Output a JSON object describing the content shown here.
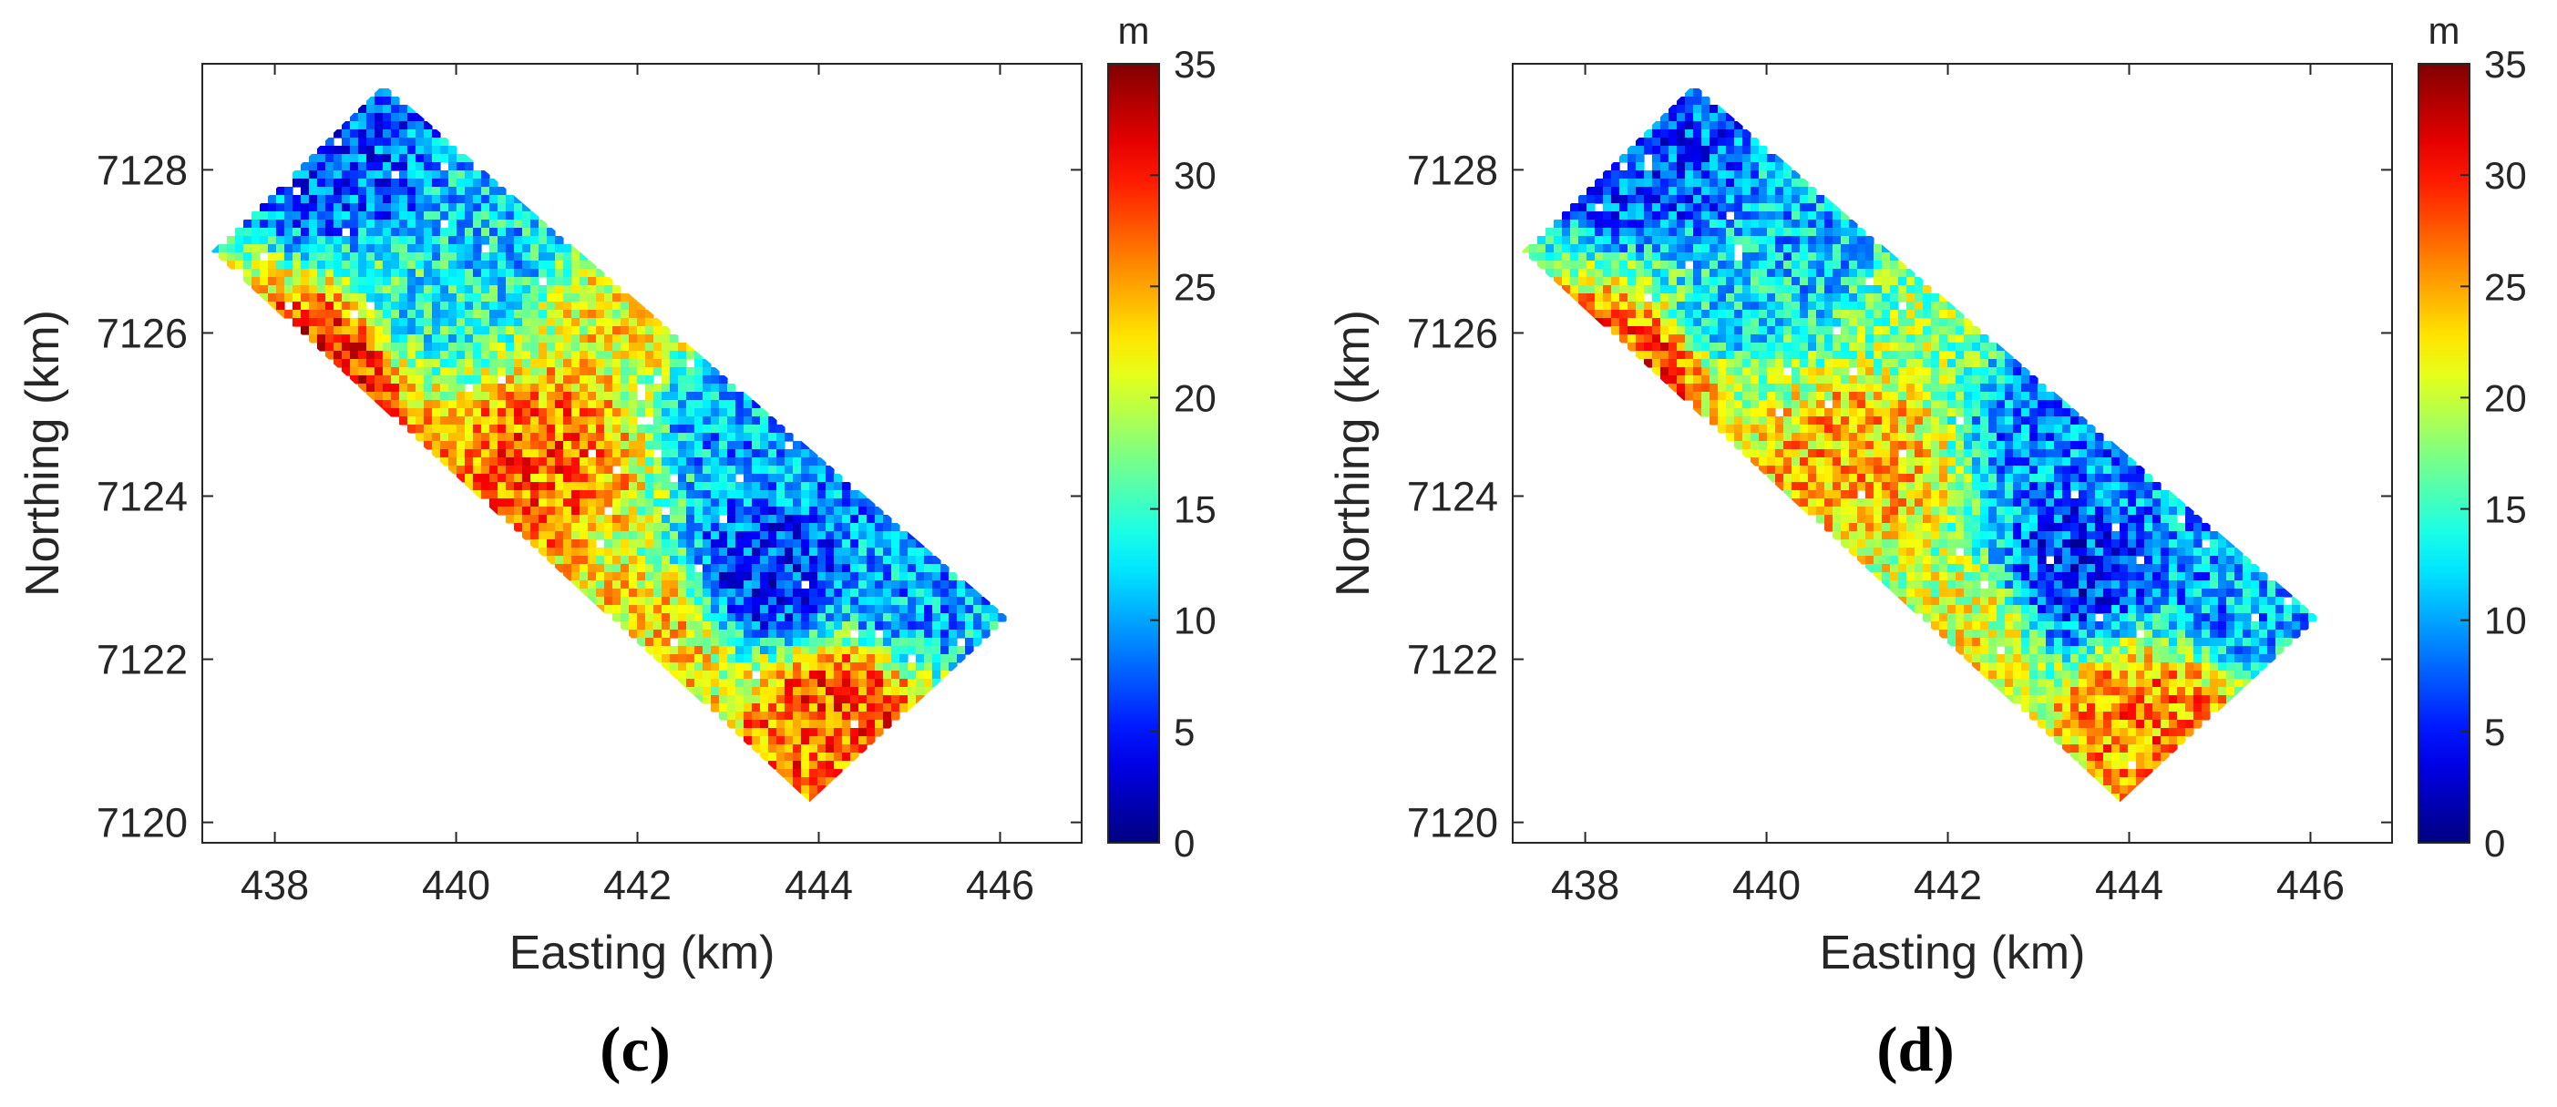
{
  "chart_data": [
    {
      "type": "heatmap",
      "panel_label": "(c)",
      "xlabel": "Easting (km)",
      "ylabel": "Northing (km)",
      "xlim": [
        437.2,
        446.9
      ],
      "ylim": [
        7119.75,
        7129.3
      ],
      "x_ticks": [
        438,
        440,
        442,
        444,
        446
      ],
      "y_ticks": [
        7120,
        7122,
        7124,
        7126,
        7128
      ],
      "colorbar": {
        "unit": "m",
        "range": [
          0,
          35
        ],
        "ticks": [
          0,
          5,
          10,
          15,
          20,
          25,
          30,
          35
        ],
        "colormap": "jet"
      },
      "strip_polygon": [
        [
          437.3,
          7127.0
        ],
        [
          439.2,
          7129.05
        ],
        [
          446.1,
          7122.5
        ],
        [
          443.9,
          7120.25
        ]
      ],
      "zones": [
        {
          "x": 438.6,
          "y": 7125.6,
          "value": 30
        },
        {
          "x": 438.8,
          "y": 7128.0,
          "value": 7
        },
        {
          "x": 440.5,
          "y": 7127.2,
          "value": 12
        },
        {
          "x": 441.8,
          "y": 7126.3,
          "value": 22
        },
        {
          "x": 441.0,
          "y": 7124.5,
          "value": 27
        },
        {
          "x": 443.4,
          "y": 7123.0,
          "value": 6
        },
        {
          "x": 442.2,
          "y": 7122.3,
          "value": 23
        },
        {
          "x": 444.2,
          "y": 7121.4,
          "value": 28
        },
        {
          "x": 445.0,
          "y": 7122.8,
          "value": 10
        },
        {
          "x": 443.2,
          "y": 7125.0,
          "value": 10
        },
        {
          "x": 439.6,
          "y": 7126.3,
          "value": 14
        }
      ]
    },
    {
      "type": "heatmap",
      "panel_label": "(d)",
      "xlabel": "Easting (km)",
      "ylabel": "Northing (km)",
      "xlim": [
        437.2,
        446.9
      ],
      "ylim": [
        7119.75,
        7129.3
      ],
      "x_ticks": [
        438,
        440,
        442,
        444,
        446
      ],
      "y_ticks": [
        7120,
        7122,
        7124,
        7126,
        7128
      ],
      "colorbar": {
        "unit": "m",
        "range": [
          0,
          35
        ],
        "ticks": [
          0,
          5,
          10,
          15,
          20,
          25,
          30,
          35
        ],
        "colormap": "jet"
      },
      "strip_polygon": [
        [
          437.3,
          7127.0
        ],
        [
          439.2,
          7129.05
        ],
        [
          446.1,
          7122.5
        ],
        [
          443.9,
          7120.25
        ]
      ],
      "zones": [
        {
          "x": 438.6,
          "y": 7125.6,
          "value": 28
        },
        {
          "x": 438.8,
          "y": 7128.0,
          "value": 7
        },
        {
          "x": 440.5,
          "y": 7127.2,
          "value": 11
        },
        {
          "x": 441.8,
          "y": 7126.3,
          "value": 18
        },
        {
          "x": 441.0,
          "y": 7124.5,
          "value": 24
        },
        {
          "x": 443.4,
          "y": 7123.0,
          "value": 6
        },
        {
          "x": 442.2,
          "y": 7122.3,
          "value": 21
        },
        {
          "x": 444.2,
          "y": 7121.4,
          "value": 26
        },
        {
          "x": 445.0,
          "y": 7122.8,
          "value": 10
        },
        {
          "x": 443.2,
          "y": 7125.0,
          "value": 9
        },
        {
          "x": 439.6,
          "y": 7126.3,
          "value": 13
        }
      ]
    }
  ]
}
